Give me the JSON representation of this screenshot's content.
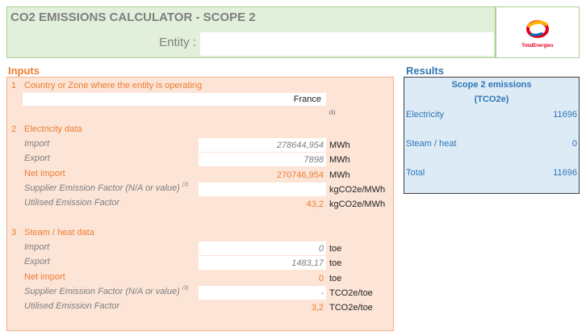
{
  "header": {
    "title": "CO2 EMISSIONS CALCULATOR - SCOPE 2",
    "entity_label": "Entity :",
    "logo_text": "TotalEnergies"
  },
  "inputs": {
    "title": "Inputs",
    "country": {
      "number": "1",
      "label": "Country or Zone where the entity is operating",
      "value": "France",
      "note": "(1)"
    },
    "sections": [
      {
        "number": "2",
        "label": "Electricity data",
        "rows": [
          {
            "label": "Import",
            "value": "278644,954",
            "unit": "MWh"
          },
          {
            "label": "Export",
            "value": "7898",
            "unit": "MWh"
          },
          {
            "label": "Net import",
            "value": "270746,954",
            "unit": "MWh"
          },
          {
            "label": "Supplier Emission Factor (N/A or value)",
            "note": "(2)",
            "unit": "kgCO2e/MWh"
          },
          {
            "label": "Utilised Emission Factor",
            "value": "43,2",
            "unit": "kgCO2e/MWh"
          }
        ]
      },
      {
        "number": "3",
        "label": "Steam / heat data",
        "rows": [
          {
            "label": "Import",
            "value": "0",
            "unit": "toe"
          },
          {
            "label": "Export",
            "value": "1483,17",
            "unit": "toe"
          },
          {
            "label": "Net import",
            "value": "0",
            "unit": "toe"
          },
          {
            "label": "Supplier Emission Factor (N/A or value)",
            "note": "(3)",
            "value": "-",
            "unit": "TCO2e/toe"
          },
          {
            "label": "Utilised Emission Factor",
            "value": "3,2",
            "unit": "TCO2e/toe"
          }
        ]
      }
    ]
  },
  "results": {
    "title": "Results",
    "heading": "Scope 2 emissions",
    "unit": "(TCO2e)",
    "rows": [
      {
        "label": "Electricity",
        "value": "11696"
      },
      {
        "label": "Steam / heat",
        "value": "0"
      },
      {
        "label": "Total",
        "value": "11696"
      }
    ]
  }
}
